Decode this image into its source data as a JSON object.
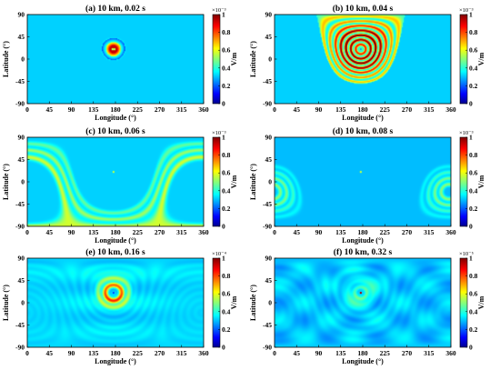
{
  "chart_data": [
    {
      "type": "heatmap",
      "title": "(a) 10 km, 0.02 s",
      "xlabel": "Longitude (°)",
      "ylabel": "Latitude (°)",
      "x_ticks": [
        "0",
        "45",
        "90",
        "135",
        "180",
        "225",
        "270",
        "315",
        "360"
      ],
      "y_ticks": [
        "90",
        "45",
        "0",
        "-45",
        "-90"
      ],
      "xlim": [
        0,
        360
      ],
      "ylim": [
        -90,
        90
      ],
      "colorbar": {
        "label": "V/m",
        "multiplier": "×10⁻³",
        "ticks": [
          "1",
          "0.8",
          "0.6",
          "0.4",
          "0.2",
          "0"
        ],
        "range": [
          0,
          1
        ]
      },
      "source": {
        "lon": 176,
        "lat": 20
      },
      "pattern": "localized",
      "max_radius_deg": 25
    },
    {
      "type": "heatmap",
      "title": "(b) 10 km, 0.04 s",
      "xlabel": "Longitude (°)",
      "ylabel": "Latitude (°)",
      "x_ticks": [
        "0",
        "45",
        "90",
        "135",
        "180",
        "225",
        "270",
        "315",
        "360"
      ],
      "y_ticks": [
        "90",
        "45",
        "0",
        "-45",
        "-90"
      ],
      "xlim": [
        0,
        360
      ],
      "ylim": [
        -90,
        90
      ],
      "colorbar": {
        "label": "V/m",
        "multiplier": "×10⁻³",
        "ticks": [
          "1",
          "0.8",
          "0.6",
          "0.4",
          "0.2",
          "0"
        ],
        "range": [
          0,
          1
        ]
      },
      "source": {
        "lon": 176,
        "lat": 20
      },
      "pattern": "rings",
      "max_radius_deg": 70
    },
    {
      "type": "heatmap",
      "title": "(c) 10 km, 0.06 s",
      "xlabel": "Longitude (°)",
      "ylabel": "Latitude (°)",
      "x_ticks": [
        "0",
        "45",
        "90",
        "135",
        "180",
        "225",
        "270",
        "315",
        "360"
      ],
      "y_ticks": [
        "90",
        "45",
        "0",
        "-45",
        "-90"
      ],
      "xlim": [
        0,
        360
      ],
      "ylim": [
        -90,
        90
      ],
      "colorbar": {
        "label": "V/m",
        "multiplier": "×10⁻³",
        "ticks": [
          "1",
          "0.8",
          "0.6",
          "0.4",
          "0.2",
          "0"
        ],
        "range": [
          0,
          1
        ]
      },
      "source": {
        "lon": 176,
        "lat": 20
      },
      "pattern": "expanding",
      "max_radius_deg": 110
    },
    {
      "type": "heatmap",
      "title": "(d) 10 km, 0.08 s",
      "xlabel": "Longitude (°)",
      "ylabel": "Latitude (°)",
      "x_ticks": [
        "0",
        "45",
        "90",
        "135",
        "180",
        "225",
        "270",
        "315",
        "360"
      ],
      "y_ticks": [
        "90",
        "45",
        "0",
        "-45",
        "-90"
      ],
      "xlim": [
        0,
        360
      ],
      "ylim": [
        -90,
        90
      ],
      "colorbar": {
        "label": "V/m",
        "multiplier": "×10⁻³",
        "ticks": [
          "1",
          "0.8",
          "0.6",
          "0.4",
          "0.2",
          "0"
        ],
        "range": [
          0,
          1
        ]
      },
      "source": {
        "lon": 176,
        "lat": 20
      },
      "pattern": "antipode",
      "max_radius_deg": 165
    },
    {
      "type": "heatmap",
      "title": "(e) 10 km, 0.16 s",
      "xlabel": "Longitude (°)",
      "ylabel": "Latitude (°)",
      "x_ticks": [
        "0",
        "45",
        "90",
        "135",
        "180",
        "225",
        "270",
        "315",
        "360"
      ],
      "y_ticks": [
        "90",
        "45",
        "0",
        "-45",
        "-90"
      ],
      "xlim": [
        0,
        360
      ],
      "ylim": [
        -90,
        90
      ],
      "colorbar": {
        "label": "V/m",
        "multiplier": "×10⁻⁴",
        "ticks": [
          "1",
          "0.8",
          "0.6",
          "0.4",
          "0.2",
          "0"
        ],
        "range": [
          0,
          1
        ]
      },
      "source": {
        "lon": 176,
        "lat": 20
      },
      "pattern": "return",
      "max_radius_deg": 35
    },
    {
      "type": "heatmap",
      "title": "(f) 10 km, 0.32 s",
      "xlabel": "Longitude (°)",
      "ylabel": "Latitude (°)",
      "x_ticks": [
        "0",
        "45",
        "90",
        "135",
        "180",
        "225",
        "270",
        "315",
        "360"
      ],
      "y_ticks": [
        "90",
        "45",
        "0",
        "-45",
        "-90"
      ],
      "xlim": [
        0,
        360
      ],
      "ylim": [
        -90,
        90
      ],
      "colorbar": {
        "label": "V/m",
        "multiplier": "×10⁻⁵",
        "ticks": [
          "1",
          "0.8",
          "0.6",
          "0.4",
          "0.2",
          "0"
        ],
        "range": [
          0,
          1
        ]
      },
      "source": {
        "lon": 176,
        "lat": 20
      },
      "pattern": "diffuse",
      "max_radius_deg": 40
    }
  ]
}
